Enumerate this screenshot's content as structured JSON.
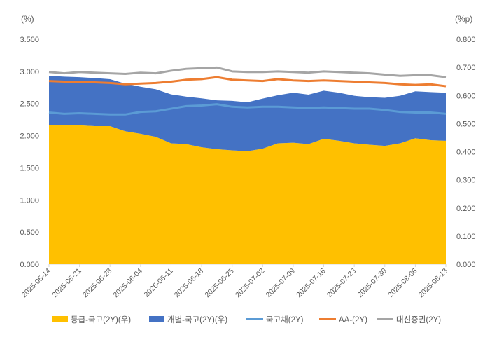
{
  "chart_data": {
    "type": "area+line",
    "left_axis": {
      "unit_label": "(%)",
      "ylim": [
        0,
        3.5
      ],
      "ticks": [
        "0.000",
        "0.500",
        "1.000",
        "1.500",
        "2.000",
        "2.500",
        "3.000",
        "3.500"
      ]
    },
    "right_axis": {
      "unit_label": "(%p)",
      "ylim": [
        0,
        0.8
      ],
      "ticks": [
        "0.000",
        "0.100",
        "0.200",
        "0.300",
        "0.400",
        "0.500",
        "0.600",
        "0.700",
        "0.800"
      ]
    },
    "x": [
      "2025-05-14",
      "2025-05-19",
      "2025-05-21",
      "2025-05-26",
      "2025-05-28",
      "2025-06-02",
      "2025-06-04",
      "2025-06-09",
      "2025-06-11",
      "2025-06-16",
      "2025-06-18",
      "2025-06-23",
      "2025-06-25",
      "2025-06-30",
      "2025-07-02",
      "2025-07-07",
      "2025-07-09",
      "2025-07-14",
      "2025-07-16",
      "2025-07-21",
      "2025-07-23",
      "2025-07-28",
      "2025-07-30",
      "2025-08-04",
      "2025-08-06",
      "2025-08-11",
      "2025-08-13"
    ],
    "x_tick_labels": [
      "2025-05-14",
      "2025-05-21",
      "2025-05-28",
      "2025-06-04",
      "2025-06-11",
      "2025-06-18",
      "2025-06-25",
      "2025-07-02",
      "2025-07-09",
      "2025-07-16",
      "2025-07-23",
      "2025-07-30",
      "2025-08-06",
      "2025-08-13"
    ],
    "series": [
      {
        "name": "등급-국고(2Y)(우)",
        "type": "stacked-area",
        "axis": "right",
        "color": "#FFC000",
        "values": [
          0.494,
          0.496,
          0.494,
          0.491,
          0.491,
          0.473,
          0.464,
          0.453,
          0.43,
          0.427,
          0.416,
          0.409,
          0.405,
          0.402,
          0.411,
          0.43,
          0.432,
          0.427,
          0.446,
          0.439,
          0.43,
          0.425,
          0.421,
          0.43,
          0.448,
          0.441,
          0.439
        ]
      },
      {
        "name": "개별-국고(2Y)(우)",
        "type": "stacked-area",
        "axis": "right",
        "color": "#4472C4",
        "values": [
          0.176,
          0.171,
          0.171,
          0.171,
          0.167,
          0.169,
          0.167,
          0.169,
          0.174,
          0.169,
          0.174,
          0.174,
          0.176,
          0.174,
          0.178,
          0.171,
          0.178,
          0.176,
          0.171,
          0.171,
          0.169,
          0.169,
          0.171,
          0.169,
          0.167,
          0.171,
          0.171
        ]
      },
      {
        "name": "국고채(2Y)",
        "type": "line",
        "axis": "left",
        "color": "#5B9BD5",
        "values": [
          2.36,
          2.34,
          2.35,
          2.34,
          2.33,
          2.33,
          2.37,
          2.38,
          2.42,
          2.46,
          2.47,
          2.49,
          2.45,
          2.44,
          2.45,
          2.45,
          2.44,
          2.43,
          2.44,
          2.43,
          2.42,
          2.42,
          2.4,
          2.37,
          2.36,
          2.36,
          2.34
        ]
      },
      {
        "name": "AA-(2Y)",
        "type": "line",
        "axis": "left",
        "color": "#ED7D31",
        "values": [
          2.85,
          2.84,
          2.84,
          2.83,
          2.82,
          2.8,
          2.81,
          2.82,
          2.84,
          2.87,
          2.88,
          2.91,
          2.87,
          2.86,
          2.85,
          2.88,
          2.86,
          2.85,
          2.86,
          2.85,
          2.84,
          2.83,
          2.82,
          2.8,
          2.79,
          2.8,
          2.77
        ]
      },
      {
        "name": "대신증권(2Y)",
        "type": "line",
        "axis": "left",
        "color": "#A5A5A5",
        "values": [
          2.99,
          2.97,
          2.99,
          2.98,
          2.97,
          2.96,
          2.98,
          2.97,
          3.01,
          3.04,
          3.05,
          3.06,
          3.0,
          2.99,
          2.99,
          3.0,
          2.99,
          2.98,
          3.0,
          2.99,
          2.98,
          2.97,
          2.95,
          2.93,
          2.94,
          2.94,
          2.91
        ]
      }
    ],
    "legend": {
      "position": "bottom",
      "entries": [
        "등급-국고(2Y)(우)",
        "개별-국고(2Y)(우)",
        "국고채(2Y)",
        "AA-(2Y)",
        "대신증권(2Y)"
      ]
    },
    "grid": false
  }
}
